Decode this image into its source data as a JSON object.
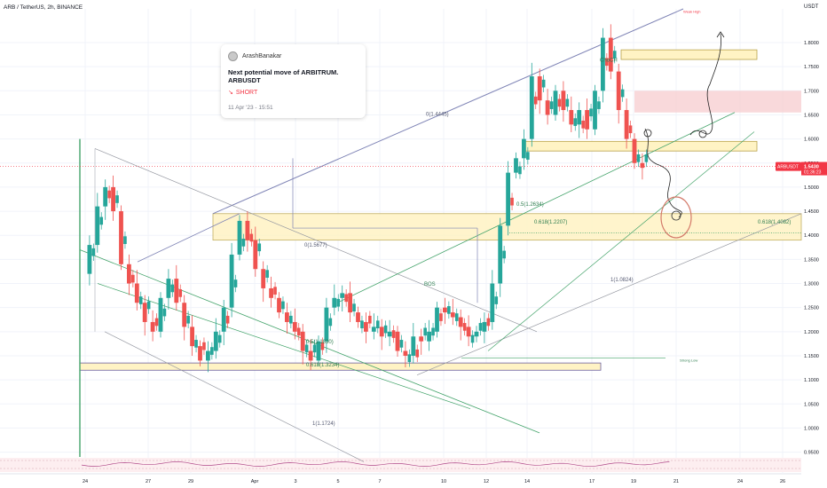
{
  "header": {
    "symbol_line": "ARB / TetherUS, 2h, BINANCE",
    "currency": "USDT"
  },
  "idea_card": {
    "author": "ArashBanakar",
    "title": "Next potential move of ARBITRUM. ARBUSDT",
    "direction": "SHORT",
    "date": "11 Apr '23 - 15:51"
  },
  "colors": {
    "up": "#26a69a",
    "down": "#ef5350",
    "zone_fill": "#fff3c4",
    "zone_border": "#b8a24a",
    "red_zone": "#f7c9cc",
    "grid": "#f0f3fa",
    "axis_text": "#131722",
    "price_tag": "#f23645",
    "fib_text": "#2e7d4f",
    "channel_blue": "#7e83b5",
    "channel_green": "#43a36a",
    "channel_gray": "#9598a1"
  },
  "chart_data": {
    "type": "candlestick",
    "x_ticks": [
      "24",
      "27",
      "29",
      "Apr",
      "3",
      "5",
      "7",
      "10",
      "12",
      "14",
      "17",
      "19",
      "21",
      "24",
      "26"
    ],
    "y_ticks": [
      "1.8000",
      "1.7500",
      "1.7000",
      "1.6500",
      "1.6000",
      "1.5500",
      "1.5000",
      "1.4500",
      "1.4000",
      "1.3500",
      "1.3000",
      "1.2500",
      "1.2000",
      "1.1500",
      "1.1000",
      "1.0500",
      "1.0000",
      "0.9500"
    ],
    "ylim": [
      0.94,
      1.87
    ],
    "last_price": {
      "label": "ARBUSDT",
      "value": "1.5430",
      "countdown": "01:36:23"
    },
    "close_path": [
      [
        0,
        1.32
      ],
      [
        1,
        1.38
      ],
      [
        2,
        1.46
      ],
      [
        3,
        1.5
      ],
      [
        4,
        1.45
      ],
      [
        5,
        1.34
      ],
      [
        6,
        1.3
      ],
      [
        7,
        1.26
      ],
      [
        8,
        1.22
      ],
      [
        9,
        1.2
      ],
      [
        10,
        1.27
      ],
      [
        11,
        1.31
      ],
      [
        12,
        1.26
      ],
      [
        13,
        1.21
      ],
      [
        14,
        1.17
      ],
      [
        15,
        1.14
      ],
      [
        16,
        1.16
      ],
      [
        17,
        1.2
      ],
      [
        18,
        1.25
      ],
      [
        19,
        1.36
      ],
      [
        20,
        1.43
      ],
      [
        21,
        1.39
      ],
      [
        22,
        1.33
      ],
      [
        23,
        1.29
      ],
      [
        24,
        1.27
      ],
      [
        25,
        1.24
      ],
      [
        26,
        1.22
      ],
      [
        27,
        1.2
      ],
      [
        28,
        1.16
      ],
      [
        29,
        1.14
      ],
      [
        30,
        1.18
      ],
      [
        31,
        1.25
      ],
      [
        32,
        1.27
      ],
      [
        33,
        1.28
      ],
      [
        34,
        1.24
      ],
      [
        35,
        1.22
      ],
      [
        36,
        1.2
      ],
      [
        37,
        1.21
      ],
      [
        38,
        1.19
      ],
      [
        39,
        1.2
      ],
      [
        40,
        1.16
      ],
      [
        41,
        1.15
      ],
      [
        42,
        1.19
      ],
      [
        43,
        1.18
      ],
      [
        44,
        1.2
      ],
      [
        45,
        1.25
      ],
      [
        46,
        1.24
      ],
      [
        47,
        1.23
      ],
      [
        48,
        1.21
      ],
      [
        49,
        1.19
      ],
      [
        50,
        1.2
      ],
      [
        51,
        1.22
      ],
      [
        52,
        1.3
      ],
      [
        53,
        1.42
      ],
      [
        54,
        1.53
      ],
      [
        55,
        1.56
      ],
      [
        56,
        1.6
      ],
      [
        57,
        1.73
      ],
      [
        58,
        1.68
      ],
      [
        59,
        1.65
      ],
      [
        60,
        1.7
      ],
      [
        61,
        1.66
      ],
      [
        62,
        1.63
      ],
      [
        63,
        1.66
      ],
      [
        64,
        1.62
      ],
      [
        65,
        1.7
      ],
      [
        66,
        1.81
      ],
      [
        67,
        1.74
      ],
      [
        68,
        1.66
      ],
      [
        69,
        1.6
      ],
      [
        70,
        1.55
      ],
      [
        71,
        1.54
      ]
    ],
    "zones": [
      {
        "label": "supply",
        "from_bar": 42,
        "to_bar": 71,
        "top": 1.445,
        "bottom": 1.39
      },
      {
        "label": "demand",
        "from_bar": 0,
        "to_bar": 49,
        "top": 1.135,
        "bottom": 1.12
      },
      {
        "label": "box",
        "from_bar": 42,
        "to_bar": 55,
        "top": 1.445,
        "bottom": 1.39
      },
      {
        "label": "top-box",
        "from_bar": 67,
        "to_bar": 78,
        "top": 1.785,
        "bottom": 1.765
      },
      {
        "label": "mid-box",
        "from_bar": 64,
        "to_bar": 78,
        "top": 1.595,
        "bottom": 1.575
      }
    ],
    "annotations": [
      {
        "text": "0(1.4445)"
      },
      {
        "text": "0(1.5677)"
      },
      {
        "text": "0.5(1.2634)"
      },
      {
        "text": "0.618(1.2207)"
      },
      {
        "text": "0.618(1.4082)"
      },
      {
        "text": "0.5(1.1830)"
      },
      {
        "text": "0.618(1.3234)"
      },
      {
        "text": "1(1.0824)"
      },
      {
        "text": "1(1.1724)"
      },
      {
        "text": "BOS"
      },
      {
        "text": "Weak High"
      },
      {
        "text": "Strong Low"
      },
      {
        "text": "ChoCH"
      }
    ]
  }
}
